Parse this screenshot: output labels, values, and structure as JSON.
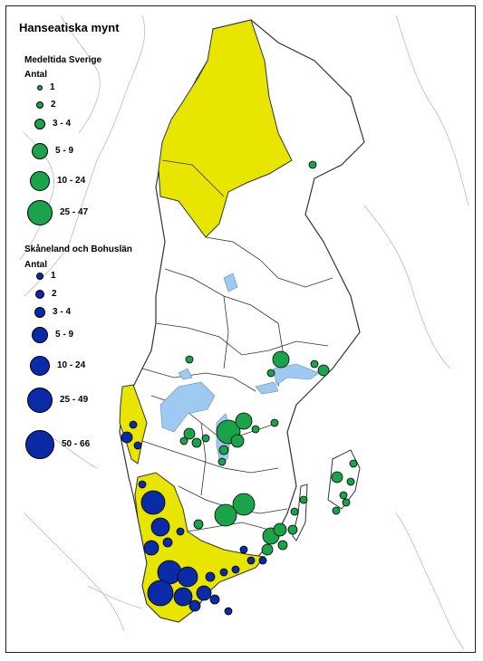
{
  "map": {
    "title": "Hanseatiska mynt",
    "colors": {
      "land": "#ffffff",
      "border": "#333333",
      "coast_neighbor": "#bbbbbb",
      "highlight_region": "#e8e600",
      "lake": "#9ec9f0",
      "group_sweden": "#1aa34a",
      "group_skane": "#0a2aa8"
    },
    "legend": {
      "groups": [
        {
          "id": "sweden",
          "name": "Medeltida Sverige",
          "antal_label": "Antal",
          "color": "#1aa34a",
          "classes": [
            "1",
            "2",
            "3 - 4",
            "5 - 9",
            "10 - 24",
            "25 - 47"
          ]
        },
        {
          "id": "skane",
          "name": "Skåneland och Bohuslän",
          "antal_label": "Antal",
          "color": "#0a2aa8",
          "classes": [
            "1",
            "2",
            "3 - 4",
            "5 - 9",
            "10 - 24",
            "25 - 49",
            "50 - 66"
          ]
        }
      ]
    }
  }
}
